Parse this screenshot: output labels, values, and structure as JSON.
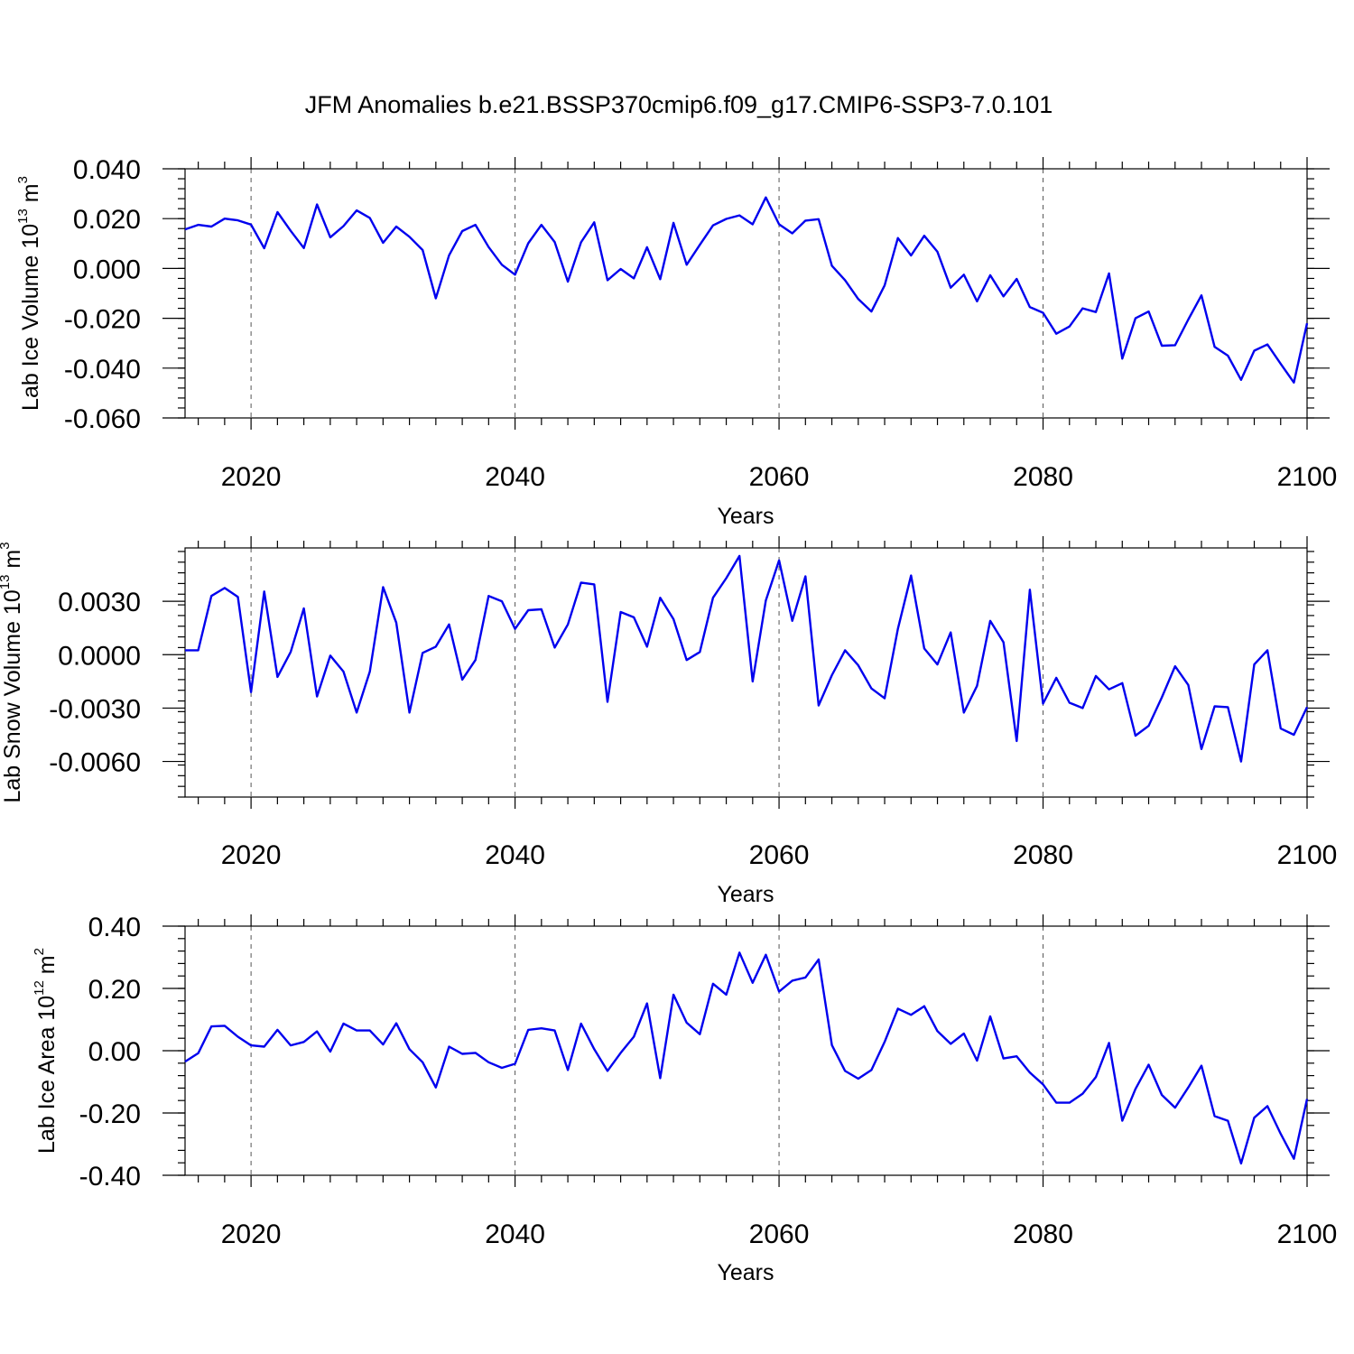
{
  "title": "JFM Anomalies b.e21.BSSP370cmip6.f09_g17.CMIP6-SSP3-7.0.101",
  "colors": {
    "line": "#0000ee",
    "axis": "#000000",
    "grid": "#555555"
  },
  "chart_data": [
    {
      "type": "line",
      "ylabel_main": "Lab Ice Volume 10",
      "ylabel_exp": "13",
      "ylabel_unit": " m",
      "ylabel_unit_exp": "3",
      "xlabel": "Years",
      "xlim": [
        2015,
        2100
      ],
      "ylim": [
        -0.06,
        0.04
      ],
      "yticks": [
        -0.06,
        -0.04,
        -0.02,
        0.0,
        0.02,
        0.04
      ],
      "ytick_labels": [
        "-0.060",
        "-0.040",
        "-0.020",
        "0.000",
        "0.020",
        "0.040"
      ],
      "xticks": [
        2020,
        2040,
        2060,
        2080,
        2100
      ],
      "xtick_labels": [
        "2020",
        "2040",
        "2060",
        "2080",
        "2100"
      ],
      "gridlines_x": [
        2020,
        2040,
        2060,
        2080
      ],
      "x_start": 2015,
      "values": [
        0.0157,
        0.0175,
        0.0168,
        0.02,
        0.0193,
        0.0176,
        0.0081,
        0.0226,
        0.0151,
        0.0082,
        0.0257,
        0.0125,
        0.017,
        0.0233,
        0.0203,
        0.0103,
        0.0168,
        0.0127,
        0.0074,
        -0.012,
        0.0053,
        0.015,
        0.0175,
        0.0086,
        0.0015,
        -0.0025,
        0.0101,
        0.0175,
        0.0106,
        -0.0053,
        0.0105,
        0.0185,
        -0.0047,
        -0.0002,
        -0.004,
        0.0085,
        -0.0043,
        0.0183,
        0.0015,
        0.0095,
        0.0173,
        0.0199,
        0.0213,
        0.0177,
        0.0285,
        0.0177,
        0.0141,
        0.0192,
        0.0198,
        0.0011,
        -0.0047,
        -0.0123,
        -0.0173,
        -0.0068,
        0.0122,
        0.0052,
        0.0131,
        0.0067,
        -0.0077,
        -0.0025,
        -0.0132,
        -0.0027,
        -0.0112,
        -0.0042,
        -0.0155,
        -0.0178,
        -0.0262,
        -0.0233,
        -0.016,
        -0.0175,
        -0.002,
        -0.0362,
        -0.02,
        -0.0173,
        -0.031,
        -0.0308,
        -0.0205,
        -0.0108,
        -0.0315,
        -0.035,
        -0.0447,
        -0.033,
        -0.0305,
        -0.0383,
        -0.0458,
        -0.022
      ]
    },
    {
      "type": "line",
      "ylabel_main": "Lab Snow Volume 10",
      "ylabel_exp": "13",
      "ylabel_unit": " m",
      "ylabel_unit_exp": "3",
      "xlabel": "Years",
      "xlim": [
        2015,
        2100
      ],
      "ylim": [
        -0.008,
        0.006
      ],
      "yticks": [
        -0.006,
        -0.003,
        0.0,
        0.003
      ],
      "ytick_labels": [
        "-0.0060",
        "-0.0030",
        "0.0000",
        "0.0030"
      ],
      "xticks": [
        2020,
        2040,
        2060,
        2080,
        2100
      ],
      "xtick_labels": [
        "2020",
        "2040",
        "2060",
        "2080",
        "2100"
      ],
      "gridlines_x": [
        2020,
        2040,
        2060,
        2080
      ],
      "x_start": 2015,
      "values": [
        0.00025,
        0.00025,
        0.0033,
        0.00375,
        0.00325,
        -0.0021,
        0.00355,
        -0.00125,
        0.00015,
        0.0026,
        -0.00235,
        -5e-05,
        -0.00095,
        -0.00325,
        -0.00095,
        0.0038,
        0.0018,
        -0.00325,
        0.0001,
        0.00045,
        0.0017,
        -0.0014,
        -0.0003,
        0.0033,
        0.003,
        0.00145,
        0.0025,
        0.00255,
        0.0004,
        0.0017,
        0.00405,
        0.00395,
        -0.00265,
        0.0024,
        0.0021,
        0.00045,
        0.0032,
        0.002,
        -0.0003,
        0.00015,
        0.0032,
        0.0043,
        0.00555,
        -0.0015,
        0.00305,
        0.0053,
        0.0019,
        0.0044,
        -0.00285,
        -0.00115,
        0.00025,
        -0.0006,
        -0.0019,
        -0.00245,
        0.00145,
        0.00445,
        0.00035,
        -0.00055,
        0.00125,
        -0.00325,
        -0.00175,
        0.0019,
        0.0007,
        -0.00485,
        0.00365,
        -0.00275,
        -0.0013,
        -0.0027,
        -0.003,
        -0.0012,
        -0.00195,
        -0.0016,
        -0.00455,
        -0.004,
        -0.0024,
        -0.00065,
        -0.0017,
        -0.0053,
        -0.0029,
        -0.00295,
        -0.006,
        -0.00055,
        0.00025,
        -0.00415,
        -0.0045,
        -0.00295
      ]
    },
    {
      "type": "line",
      "ylabel_main": "Lab Ice Area 10",
      "ylabel_exp": "12",
      "ylabel_unit": " m",
      "ylabel_unit_exp": "2",
      "xlabel": "Years",
      "xlim": [
        2015,
        2100
      ],
      "ylim": [
        -0.4,
        0.4
      ],
      "yticks": [
        -0.4,
        -0.2,
        0.0,
        0.2,
        0.4
      ],
      "ytick_labels": [
        "-0.40",
        "-0.20",
        "0.00",
        "0.20",
        "0.40"
      ],
      "xticks": [
        2020,
        2040,
        2060,
        2080,
        2100
      ],
      "xtick_labels": [
        "2020",
        "2040",
        "2060",
        "2080",
        "2100"
      ],
      "gridlines_x": [
        2020,
        2040,
        2060,
        2080
      ],
      "x_start": 2015,
      "values": [
        -0.035,
        -0.008,
        0.078,
        0.08,
        0.045,
        0.017,
        0.013,
        0.067,
        0.017,
        0.028,
        0.062,
        -0.003,
        0.087,
        0.065,
        0.065,
        0.02,
        0.088,
        0.005,
        -0.037,
        -0.118,
        0.013,
        -0.01,
        -0.007,
        -0.037,
        -0.055,
        -0.042,
        0.067,
        0.072,
        0.065,
        -0.062,
        0.087,
        0.005,
        -0.065,
        -0.007,
        0.045,
        0.152,
        -0.088,
        0.18,
        0.09,
        0.053,
        0.215,
        0.18,
        0.315,
        0.218,
        0.308,
        0.19,
        0.225,
        0.235,
        0.293,
        0.018,
        -0.065,
        -0.09,
        -0.062,
        0.028,
        0.135,
        0.115,
        0.143,
        0.063,
        0.022,
        0.055,
        -0.032,
        0.11,
        -0.025,
        -0.018,
        -0.07,
        -0.108,
        -0.167,
        -0.167,
        -0.138,
        -0.085,
        0.025,
        -0.225,
        -0.123,
        -0.045,
        -0.142,
        -0.183,
        -0.118,
        -0.048,
        -0.21,
        -0.225,
        -0.362,
        -0.215,
        -0.178,
        -0.267,
        -0.347,
        -0.155
      ]
    }
  ]
}
